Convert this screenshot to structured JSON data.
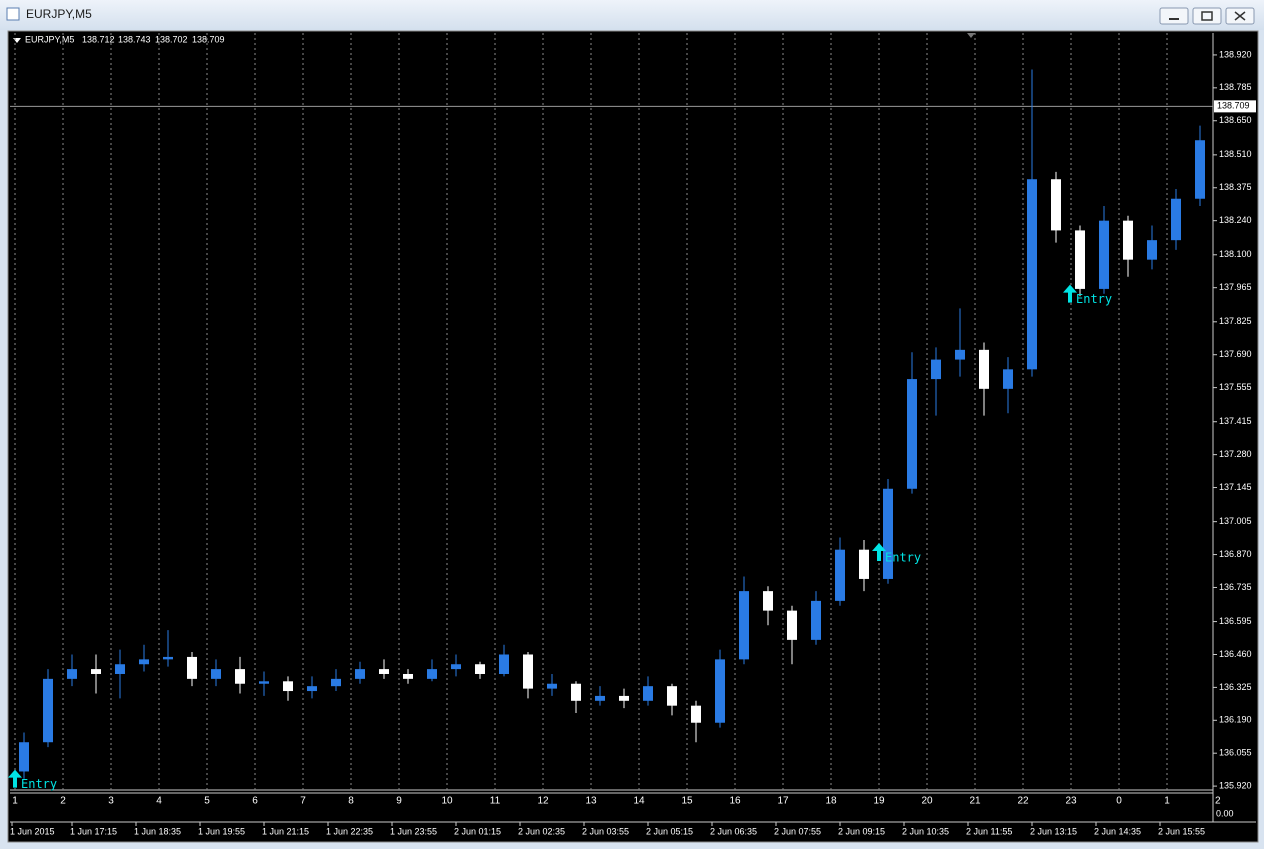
{
  "window": {
    "title": "EURJPY,M5"
  },
  "chart_data": {
    "type": "candlestick",
    "symbol": "EURJPY,M5",
    "ohlc_header": [
      "138.712",
      "138.743",
      "138.702",
      "138.709"
    ],
    "open": [
      135.98,
      136.1,
      136.36,
      136.4,
      136.38,
      136.42,
      136.44,
      136.45,
      136.36,
      136.4,
      136.34,
      136.35,
      136.31,
      136.33,
      136.36,
      136.4,
      136.38,
      136.36,
      136.4,
      136.42,
      136.38,
      136.46,
      136.32,
      136.34,
      136.27,
      136.29,
      136.27,
      136.33,
      136.25,
      136.18,
      136.44,
      136.72,
      136.64,
      136.52,
      136.68,
      136.89,
      136.77,
      137.14,
      137.59,
      137.67,
      137.71,
      137.55,
      137.63,
      138.41,
      138.2,
      137.96,
      138.24,
      138.08,
      138.16,
      138.33
    ],
    "high": [
      136.14,
      136.4,
      136.46,
      136.46,
      136.48,
      136.5,
      136.56,
      136.47,
      136.44,
      136.45,
      136.39,
      136.37,
      136.37,
      136.4,
      136.43,
      136.44,
      136.4,
      136.44,
      136.46,
      136.43,
      136.5,
      136.47,
      136.38,
      136.35,
      136.33,
      136.32,
      136.37,
      136.34,
      136.27,
      136.48,
      136.78,
      136.74,
      136.66,
      136.72,
      136.94,
      136.93,
      137.18,
      137.7,
      137.72,
      137.88,
      137.74,
      137.68,
      138.86,
      138.44,
      138.22,
      138.3,
      138.26,
      138.22,
      138.37,
      138.63
    ],
    "low": [
      135.95,
      136.08,
      136.33,
      136.3,
      136.28,
      136.39,
      136.41,
      136.33,
      136.33,
      136.3,
      136.29,
      136.27,
      136.28,
      136.31,
      136.34,
      136.36,
      136.34,
      136.35,
      136.37,
      136.36,
      136.37,
      136.28,
      136.29,
      136.22,
      136.25,
      136.24,
      136.25,
      136.21,
      136.1,
      136.16,
      136.42,
      136.58,
      136.42,
      136.5,
      136.66,
      136.72,
      136.75,
      137.12,
      137.44,
      137.6,
      137.44,
      137.45,
      137.6,
      138.15,
      137.93,
      137.94,
      138.01,
      138.04,
      138.12,
      138.3
    ],
    "close": [
      136.1,
      136.36,
      136.4,
      136.38,
      136.42,
      136.44,
      136.45,
      136.36,
      136.4,
      136.34,
      136.35,
      136.31,
      136.33,
      136.36,
      136.4,
      136.38,
      136.36,
      136.4,
      136.42,
      136.38,
      136.46,
      136.32,
      136.34,
      136.27,
      136.29,
      136.27,
      136.33,
      136.25,
      136.18,
      136.44,
      136.72,
      136.64,
      136.52,
      136.68,
      136.89,
      136.77,
      137.14,
      137.59,
      137.67,
      137.71,
      137.55,
      137.63,
      138.41,
      138.2,
      137.96,
      138.24,
      138.08,
      138.16,
      138.33,
      138.57
    ],
    "colors": {
      "up": "#2a7be4",
      "down": "#ffffff",
      "background": "#000000",
      "grid": "#8a8a8a",
      "signal": "#00e5e5"
    },
    "ylim": [
      135.904,
      139.01
    ],
    "yticks": [
      {
        "value": 135.92,
        "label": "135.920"
      },
      {
        "value": 136.055,
        "label": "136.055"
      },
      {
        "value": 136.19,
        "label": "136.190"
      },
      {
        "value": 136.325,
        "label": "136.325"
      },
      {
        "value": 136.46,
        "label": "136.460"
      },
      {
        "value": 136.595,
        "label": "136.595"
      },
      {
        "value": 136.735,
        "label": "136.735"
      },
      {
        "value": 136.87,
        "label": "136.870"
      },
      {
        "value": 137.005,
        "label": "137.005"
      },
      {
        "value": 137.145,
        "label": "137.145"
      },
      {
        "value": 137.28,
        "label": "137.280"
      },
      {
        "value": 137.415,
        "label": "137.415"
      },
      {
        "value": 137.555,
        "label": "137.555"
      },
      {
        "value": 137.69,
        "label": "137.690"
      },
      {
        "value": 137.825,
        "label": "137.825"
      },
      {
        "value": 137.965,
        "label": "137.965"
      },
      {
        "value": 138.1,
        "label": "138.100"
      },
      {
        "value": 138.24,
        "label": "138.240"
      },
      {
        "value": 138.375,
        "label": "138.375"
      },
      {
        "value": 138.51,
        "label": "138.510"
      },
      {
        "value": 138.65,
        "label": "138.650"
      },
      {
        "value": 138.785,
        "label": "138.785"
      },
      {
        "value": 138.92,
        "label": "138.920"
      }
    ],
    "price_line": {
      "value": 138.709,
      "label": "138.709"
    },
    "annotations": [
      {
        "label": "Entry",
        "value": 135.93
      },
      {
        "label": "Entry",
        "value": 136.86
      },
      {
        "label": "Entry",
        "value": 137.92
      }
    ],
    "hour_labels": [
      "1",
      "2",
      "3",
      "4",
      "5",
      "6",
      "7",
      "8",
      "9",
      "10",
      "11",
      "12",
      "13",
      "14",
      "15",
      "16",
      "17",
      "18",
      "19",
      "20",
      "21",
      "22",
      "23",
      "0",
      "1",
      "2"
    ],
    "subwindow_value": "0.00",
    "time_labels": [
      "1 Jun 2015",
      "1 Jun 17:15",
      "1 Jun 18:35",
      "1 Jun 19:55",
      "1 Jun 21:15",
      "1 Jun 22:35",
      "1 Jun 23:55",
      "2 Jun 01:15",
      "2 Jun 02:35",
      "2 Jun 03:55",
      "2 Jun 05:15",
      "2 Jun 06:35",
      "2 Jun 07:55",
      "2 Jun 09:15",
      "2 Jun 10:35",
      "2 Jun 11:55",
      "2 Jun 13:15",
      "2 Jun 14:35",
      "2 Jun 15:55"
    ],
    "grid": true
  }
}
